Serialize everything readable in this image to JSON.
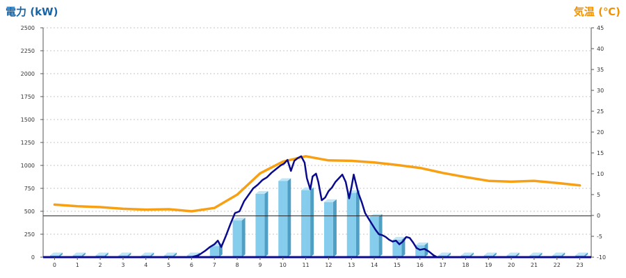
{
  "chart_data": {
    "type": "bar",
    "ylabel_left": "電力 (kW)",
    "ylabel_right": "気温 (℃)",
    "y_left_range": [
      0,
      2500
    ],
    "y_left_ticks": [
      0,
      250,
      500,
      750,
      1000,
      1250,
      1500,
      1750,
      2000,
      2250,
      2500
    ],
    "y_right_range": [
      -10,
      45
    ],
    "y_right_ticks": [
      -10,
      -5,
      0,
      5,
      10,
      15,
      20,
      25,
      30,
      35,
      40,
      45
    ],
    "grid": true,
    "categories": [
      "0",
      "1",
      "2",
      "3",
      "4",
      "5",
      "6",
      "7",
      "8",
      "9",
      "10",
      "11",
      "12",
      "13",
      "14",
      "15",
      "16",
      "17",
      "18",
      "19",
      "20",
      "21",
      "22",
      "23"
    ],
    "series": [
      {
        "kind": "bar",
        "axis": "left",
        "values": [
          20,
          20,
          20,
          20,
          20,
          20,
          20,
          120,
          400,
          690,
          830,
          730,
          600,
          700,
          440,
          190,
          130,
          20,
          20,
          20,
          20,
          20,
          20,
          20
        ]
      },
      {
        "kind": "line",
        "axis": "left",
        "x": [
          6,
          6.3,
          6.6,
          6.8,
          7,
          7.15,
          7.3,
          7.5,
          7.7,
          7.9,
          8.1,
          8.3,
          8.5,
          8.7,
          8.9,
          9.1,
          9.3,
          9.5,
          9.7,
          9.9,
          10.05,
          10.2,
          10.35,
          10.5,
          10.65,
          10.8,
          10.95,
          11.05,
          11.2,
          11.3,
          11.45,
          11.55,
          11.7,
          11.85,
          12.0,
          12.15,
          12.3,
          12.45,
          12.6,
          12.75,
          12.9,
          13.0,
          13.1,
          13.2,
          13.3,
          13.45,
          13.6,
          13.75,
          13.9,
          14.05,
          14.2,
          14.35,
          14.5,
          14.65,
          14.8,
          14.95,
          15.1,
          15.25,
          15.4,
          15.55,
          15.7,
          15.85,
          16.0,
          16.2,
          16.4,
          16.6,
          16.75
        ],
        "values": [
          0,
          20,
          70,
          110,
          140,
          180,
          110,
          230,
          360,
          480,
          500,
          610,
          680,
          750,
          790,
          840,
          870,
          920,
          960,
          1000,
          1020,
          1060,
          940,
          1050,
          1080,
          1100,
          1030,
          860,
          740,
          880,
          910,
          820,
          620,
          650,
          720,
          760,
          820,
          860,
          900,
          820,
          640,
          760,
          900,
          800,
          700,
          600,
          480,
          420,
          360,
          300,
          250,
          240,
          220,
          190,
          170,
          180,
          140,
          170,
          220,
          210,
          160,
          100,
          80,
          90,
          60,
          20,
          0
        ]
      },
      {
        "kind": "line",
        "axis": "right",
        "hours": [
          0,
          1,
          2,
          3,
          4,
          5,
          6,
          7,
          8,
          9,
          10,
          11,
          12,
          13,
          14,
          15,
          16,
          17,
          18,
          19,
          20,
          21,
          22,
          23
        ],
        "values": [
          2.6,
          2.2,
          2.0,
          1.6,
          1.4,
          1.5,
          1.0,
          1.8,
          5.0,
          10.1,
          12.9,
          14.2,
          13.2,
          13.1,
          12.7,
          12.1,
          11.4,
          10.2,
          9.2,
          8.3,
          8.1,
          8.3,
          7.8,
          7.2
        ]
      }
    ],
    "reference_line": {
      "axis": "left",
      "value": 450
    },
    "colors": {
      "bar_front": "#86ccec",
      "bar_side": "#4f9fc4",
      "bar_top": "#bfe6f7",
      "power_line": "#0a0a8c",
      "temp_line": "#f7a014",
      "grid": "#c4c4c4",
      "axis": "#555555",
      "ylabel_left": "#1565a8",
      "ylabel_right": "#f39200"
    }
  }
}
